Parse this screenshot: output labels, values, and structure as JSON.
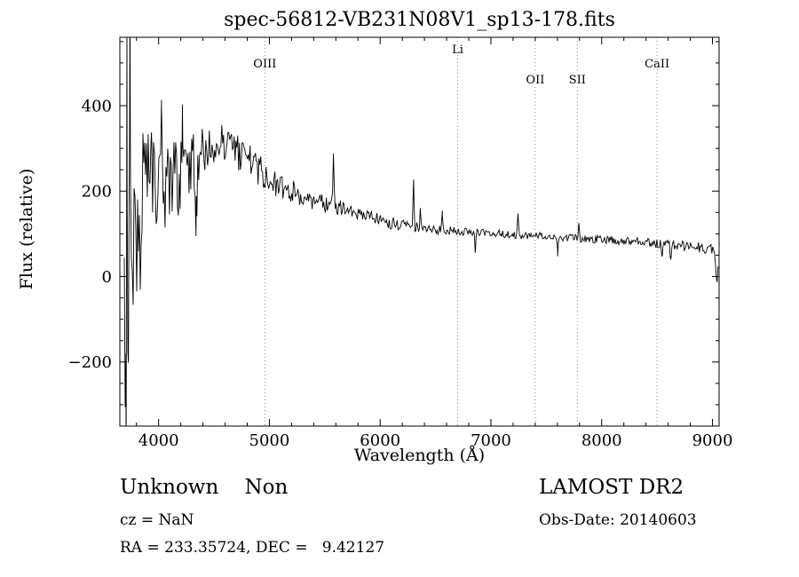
{
  "chart_data": {
    "type": "line",
    "title": "spec-56812-VB231N08V1_sp13-178.fits",
    "xlabel": "Wavelength (Å)",
    "ylabel": "Flux (relative)",
    "xlim": [
      3650,
      9060
    ],
    "ylim": [
      -350,
      560
    ],
    "xticks": [
      4000,
      5000,
      6000,
      7000,
      8000,
      9000
    ],
    "yticks": [
      -200,
      0,
      200,
      400
    ],
    "x_minor_step": 200,
    "y_minor_step": 50,
    "line_color": "#000000",
    "marker_line_color": "#8a8a8a",
    "markers": [
      {
        "label": "OIII",
        "wavelength": 4959,
        "label_dy": 34
      },
      {
        "label": "Li",
        "wavelength": 6700,
        "label_dy": 18
      },
      {
        "label": "OII",
        "wavelength": 7400,
        "label_dy": 52
      },
      {
        "label": "SII",
        "wavelength": 7780,
        "label_dy": 52
      },
      {
        "label": "CaII",
        "wavelength": 8500,
        "label_dy": 34
      }
    ],
    "continuum": [
      [
        3690,
        100
      ],
      [
        3760,
        140
      ],
      [
        3830,
        170
      ],
      [
        3900,
        195
      ],
      [
        3980,
        210
      ],
      [
        4060,
        220
      ],
      [
        4150,
        230
      ],
      [
        4250,
        245
      ],
      [
        4350,
        270
      ],
      [
        4450,
        300
      ],
      [
        4530,
        320
      ],
      [
        4600,
        310
      ],
      [
        4700,
        292
      ],
      [
        4800,
        272
      ],
      [
        4900,
        252
      ],
      [
        5000,
        228
      ],
      [
        5100,
        212
      ],
      [
        5250,
        195
      ],
      [
        5400,
        178
      ],
      [
        5550,
        166
      ],
      [
        5700,
        156
      ],
      [
        5900,
        140
      ],
      [
        6100,
        124
      ],
      [
        6300,
        117
      ],
      [
        6500,
        110
      ],
      [
        6700,
        106
      ],
      [
        6900,
        103
      ],
      [
        7100,
        100
      ],
      [
        7300,
        96
      ],
      [
        7500,
        94
      ],
      [
        7700,
        91
      ],
      [
        7900,
        88
      ],
      [
        8100,
        85
      ],
      [
        8300,
        82
      ],
      [
        8500,
        78
      ],
      [
        8700,
        73
      ],
      [
        8900,
        67
      ],
      [
        9000,
        62
      ],
      [
        9050,
        45
      ]
    ],
    "noise_amplitude": [
      [
        3690,
        300
      ],
      [
        3750,
        265
      ],
      [
        3820,
        215
      ],
      [
        3900,
        150
      ],
      [
        4000,
        118
      ],
      [
        4100,
        100
      ],
      [
        4250,
        90
      ],
      [
        4400,
        65
      ],
      [
        4550,
        42
      ],
      [
        4700,
        45
      ],
      [
        4850,
        40
      ],
      [
        5000,
        33
      ],
      [
        5200,
        26
      ],
      [
        5500,
        20
      ],
      [
        5800,
        16
      ],
      [
        6100,
        14
      ],
      [
        6500,
        11
      ],
      [
        7000,
        9
      ],
      [
        7600,
        9
      ],
      [
        8200,
        10
      ],
      [
        8700,
        12
      ],
      [
        9050,
        13
      ]
    ],
    "spikes": [
      [
        3705,
        -430,
        5
      ],
      [
        3716,
        330,
        4
      ],
      [
        3728,
        -370,
        5
      ],
      [
        3741,
        300,
        4
      ],
      [
        3935,
        235,
        5
      ],
      [
        4026,
        175,
        5
      ],
      [
        4215,
        160,
        4
      ],
      [
        4340,
        -120,
        5
      ],
      [
        5578,
        112,
        5
      ],
      [
        6302,
        112,
        4
      ],
      [
        6365,
        45,
        4
      ],
      [
        6562,
        35,
        5
      ],
      [
        6860,
        -42,
        5
      ],
      [
        7245,
        55,
        4
      ],
      [
        7602,
        -36,
        5
      ],
      [
        7792,
        38,
        4
      ],
      [
        8542,
        -36,
        5
      ],
      [
        8622,
        -42,
        5
      ],
      [
        9040,
        -48,
        12
      ]
    ],
    "sampling": {
      "start": 3690,
      "end": 9050,
      "step": 8,
      "seed": 20140603
    }
  },
  "footer": {
    "classification": "Unknown    Non",
    "survey": "LAMOST DR2",
    "cz": "cz = NaN",
    "obs_date": "Obs-Date: 20140603",
    "coords": "RA = 233.35724, DEC =   9.42127"
  }
}
